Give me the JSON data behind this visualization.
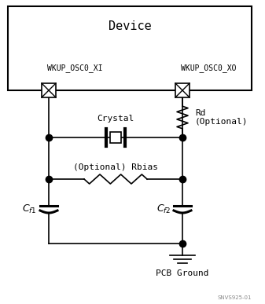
{
  "title": "Device",
  "label_xi": "WKUP_OSC0_XI",
  "label_xo": "WKUP_OSC0_XO",
  "label_crystal": "Crystal",
  "label_rd": "Rd\n(Optional)",
  "label_rbias": "(Optional) Rbias",
  "label_gnd": "PCB Ground",
  "bg_color": "#ffffff",
  "line_color": "#000000",
  "watermark": "SNVS925-01"
}
